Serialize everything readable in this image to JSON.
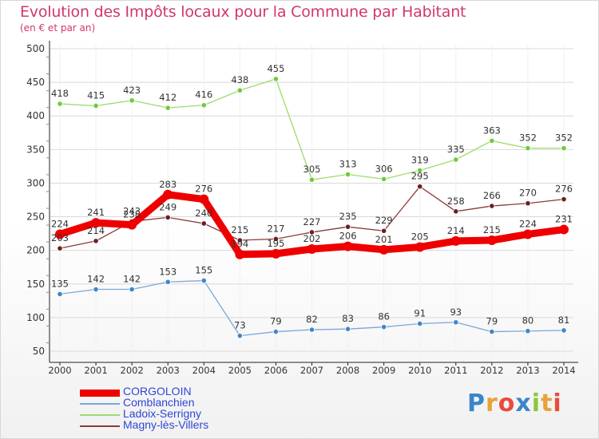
{
  "header": {
    "title": "Evolution des Impôts locaux pour la Commune par Habitant",
    "subtitle": "(en € et par an)"
  },
  "logo": {
    "text": "Proxiti",
    "letter_colors": [
      "#3a86c8",
      "#e8a23a",
      "#e94b3c",
      "#3a86c8",
      "#8cc63f",
      "#e8a23a",
      "#e94b3c"
    ]
  },
  "chart_data": {
    "type": "line",
    "title": "Evolution des Impôts locaux pour la Commune par Habitant",
    "subtitle": "(en € et par an)",
    "xlabel": "",
    "ylabel": "",
    "ylim": [
      50,
      500
    ],
    "yticks": [
      50,
      100,
      150,
      200,
      250,
      300,
      350,
      400,
      450,
      500
    ],
    "grid": true,
    "legend_position": "bottom-left",
    "x": [
      "2000",
      "2001",
      "2002",
      "2003",
      "2004",
      "2005",
      "2006",
      "2007",
      "2008",
      "2009",
      "2010",
      "2011",
      "2012",
      "2013",
      "2014"
    ],
    "series": [
      {
        "name": "CORGOLOIN",
        "color": "#ee0000",
        "markerColor": "#ee0000",
        "thick": true,
        "values": [
          224,
          241,
          238,
          283,
          276,
          194,
          195,
          202,
          206,
          201,
          205,
          214,
          215,
          224,
          231
        ]
      },
      {
        "name": "Comblanchien",
        "color": "#7ba7d6",
        "markerColor": "#3f86c9",
        "thick": false,
        "values": [
          135,
          142,
          142,
          153,
          155,
          73,
          79,
          82,
          83,
          86,
          91,
          93,
          79,
          80,
          81
        ]
      },
      {
        "name": "Ladoix-Serrigny",
        "color": "#9cdc6c",
        "markerColor": "#6ecb3c",
        "thick": false,
        "values": [
          418,
          415,
          423,
          412,
          416,
          438,
          455,
          305,
          313,
          306,
          319,
          335,
          363,
          352,
          352
        ]
      },
      {
        "name": "Magny-lès-Villers",
        "color": "#8a3a3a",
        "markerColor": "#6b1f1f",
        "thick": false,
        "values": [
          203,
          214,
          243,
          249,
          240,
          215,
          217,
          227,
          235,
          229,
          295,
          258,
          266,
          270,
          276
        ]
      }
    ]
  }
}
